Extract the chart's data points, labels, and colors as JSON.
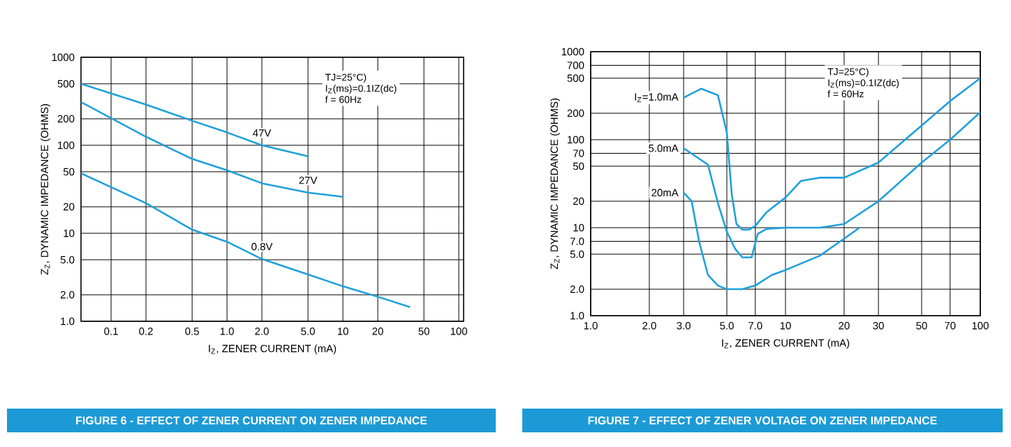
{
  "chart_data": [
    {
      "type": "line",
      "title": "FIGURE 6 - EFFECT OF ZENER CURRENT ON ZENER IMPEDANCE",
      "xlabel": "I$_{Z}$, ZENER CURRENT (mA)",
      "ylabel": "Z$_{Z}$, DYNAMIC IMPEDANCE (OHMS)",
      "log": "xy",
      "grid": true,
      "legend": false,
      "xlim": [
        0.055,
        110
      ],
      "ylim": [
        1,
        1000
      ],
      "xticks": [
        0.1,
        0.2,
        {
          "value": 0.5,
          "label": "0.5"
        },
        {
          "value": 1,
          "label": "1.0"
        },
        {
          "value": 2,
          "label": "2.0"
        },
        {
          "value": 5,
          "label": "5.0"
        },
        10,
        20,
        50,
        100
      ],
      "yticks": [
        {
          "value": 1,
          "label": "1.0"
        },
        {
          "value": 2,
          "label": "2.0"
        },
        {
          "value": 5,
          "label": "5.0"
        },
        10,
        20,
        50,
        100,
        200,
        500,
        1000
      ],
      "annotations": [
        "TJ=25°C)",
        "I$_{Z}$(ms)=0.1IZ(dc)",
        "f = 60Hz"
      ],
      "series": [
        {
          "name": "47V",
          "color": "#1ea0dc",
          "x": [
            0.055,
            0.2,
            0.5,
            1.0,
            2.0,
            5.0
          ],
          "values": [
            500,
            290,
            190,
            140,
            100,
            75
          ]
        },
        {
          "name": "27V",
          "color": "#1ea0dc",
          "x": [
            0.055,
            0.2,
            0.5,
            1.0,
            2.0,
            5.0,
            10
          ],
          "values": [
            310,
            125,
            70,
            52,
            37,
            29,
            26
          ]
        },
        {
          "name": "0.8V",
          "color": "#1ea0dc",
          "x": [
            0.055,
            0.2,
            0.5,
            1.0,
            2.0,
            5.0,
            10,
            20,
            38
          ],
          "values": [
            48,
            22,
            11,
            8,
            5.1,
            3.4,
            2.5,
            1.9,
            1.45
          ]
        }
      ]
    },
    {
      "type": "line",
      "title": "FIGURE 7 - EFFECT OF ZENER VOLTAGE ON ZENER IMPEDANCE",
      "xlabel": "I$_{Z}$, ZENER CURRENT (mA)",
      "ylabel": "Z$_{Z}$, DYNAMIC IMPEDANCE (OHMS)",
      "log": "xy",
      "grid": true,
      "legend": false,
      "xlim": [
        1,
        100
      ],
      "ylim": [
        1,
        1000
      ],
      "xticks": [
        {
          "value": 1,
          "label": "1.0"
        },
        {
          "value": 2,
          "label": "2.0"
        },
        {
          "value": 3,
          "label": "3.0"
        },
        {
          "value": 5,
          "label": "5.0"
        },
        {
          "value": 7,
          "label": "7.0"
        },
        10,
        20,
        30,
        50,
        70,
        100
      ],
      "yticks": [
        {
          "value": 1,
          "label": "1.0"
        },
        {
          "value": 2,
          "label": "2.0"
        },
        {
          "value": 5,
          "label": "5.0"
        },
        {
          "value": 7,
          "label": "7.0"
        },
        10,
        20,
        50,
        70,
        100,
        200,
        500,
        700,
        1000
      ],
      "annotations": [
        "TJ=25°C)",
        "I$_{Z}$(ms)=0.1IZ(dc)",
        "f = 60Hz"
      ],
      "series": [
        {
          "name": "I$_{Z}$=1.0mA",
          "color": "#1ea0dc",
          "x": [
            3.0,
            3.7,
            4.5,
            5.0,
            5.3,
            5.6,
            6.0,
            6.5,
            7.0,
            8,
            10,
            12,
            15,
            20,
            30,
            50,
            70,
            100
          ],
          "values": [
            300,
            380,
            320,
            120,
            24,
            11,
            9.5,
            9.5,
            10.5,
            15,
            22,
            34,
            37,
            37,
            55,
            145,
            275,
            500
          ]
        },
        {
          "name": "5.0mA",
          "color": "#1ea0dc",
          "x": [
            3.0,
            4.0,
            4.5,
            5.0,
            5.5,
            6.0,
            6.7,
            7.2,
            8,
            10,
            15,
            20,
            30,
            50,
            70,
            100
          ],
          "values": [
            80,
            52,
            19,
            9,
            5.8,
            4.6,
            4.6,
            8.5,
            9.7,
            10,
            10,
            11,
            20,
            55,
            100,
            205
          ]
        },
        {
          "name": "20mA",
          "color": "#1ea0dc",
          "x": [
            3.0,
            3.3,
            3.6,
            4.0,
            4.5,
            5.0,
            6.0,
            7.0,
            8.5,
            10,
            15,
            20,
            24
          ],
          "values": [
            25,
            20,
            7,
            2.9,
            2.2,
            2.0,
            2.0,
            2.2,
            2.9,
            3.3,
            4.8,
            7.5,
            10
          ]
        }
      ]
    }
  ]
}
